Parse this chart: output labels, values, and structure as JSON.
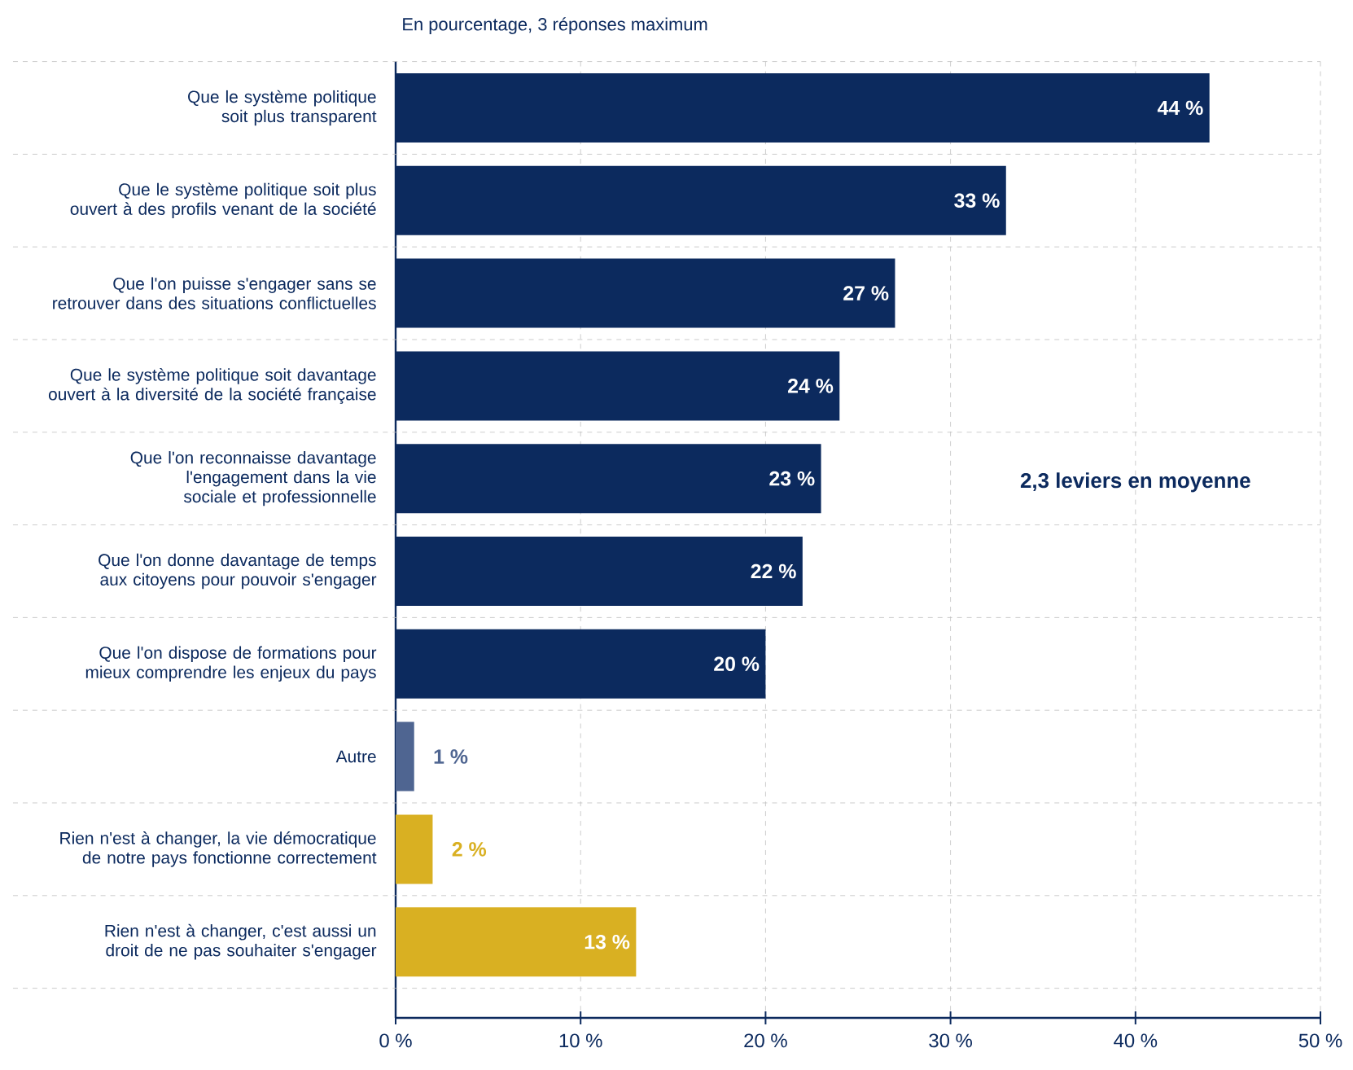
{
  "chart_data": {
    "type": "bar",
    "orientation": "horizontal",
    "title": "En pourcentage, 3 réponses maximum",
    "categories": [
      "Que le système politique soit plus transparent",
      "Que le système politique soit plus ouvert à des profils venant de la société",
      "Que l'on puisse s'engager sans se retrouver dans des situations conflictuelles",
      "Que le système politique soit davantage ouvert à la diversité de la société française",
      "Que l'on reconnaisse davantage l'engagement dans la vie sociale et professionnelle",
      "Que l'on donne davantage de temps aux citoyens pour pouvoir s'engager",
      "Que l'on dispose de formations pour mieux comprendre les enjeux du pays",
      "Autre",
      "Rien n'est à changer, la vie démocratique de notre pays fonctionne correctement",
      "Rien n'est à changer, c'est aussi un droit de ne pas souhaiter s'engager"
    ],
    "values": [
      44,
      33,
      27,
      24,
      23,
      22,
      20,
      1,
      2,
      13
    ],
    "colors": [
      "#0c2a5e",
      "#0c2a5e",
      "#0c2a5e",
      "#0c2a5e",
      "#0c2a5e",
      "#0c2a5e",
      "#0c2a5e",
      "#4f6591",
      "#d9b022",
      "#d9b022"
    ],
    "value_labels": [
      "44 %",
      "33 %",
      "27 %",
      "24 %",
      "23 %",
      "22 %",
      "20 %",
      "1 %",
      "2 %",
      "13 %"
    ],
    "xlim": [
      0,
      50
    ],
    "xticks": [
      {
        "value": 0,
        "label": "0 %"
      },
      {
        "value": 10,
        "label": "10 %"
      },
      {
        "value": 20,
        "label": "20 %"
      },
      {
        "value": 30,
        "label": "30 %"
      },
      {
        "value": 40,
        "label": "40 %"
      },
      {
        "value": 50,
        "label": "50 %"
      }
    ],
    "grid": true,
    "annotations": [
      "2,3 leviers en moyenne"
    ]
  }
}
